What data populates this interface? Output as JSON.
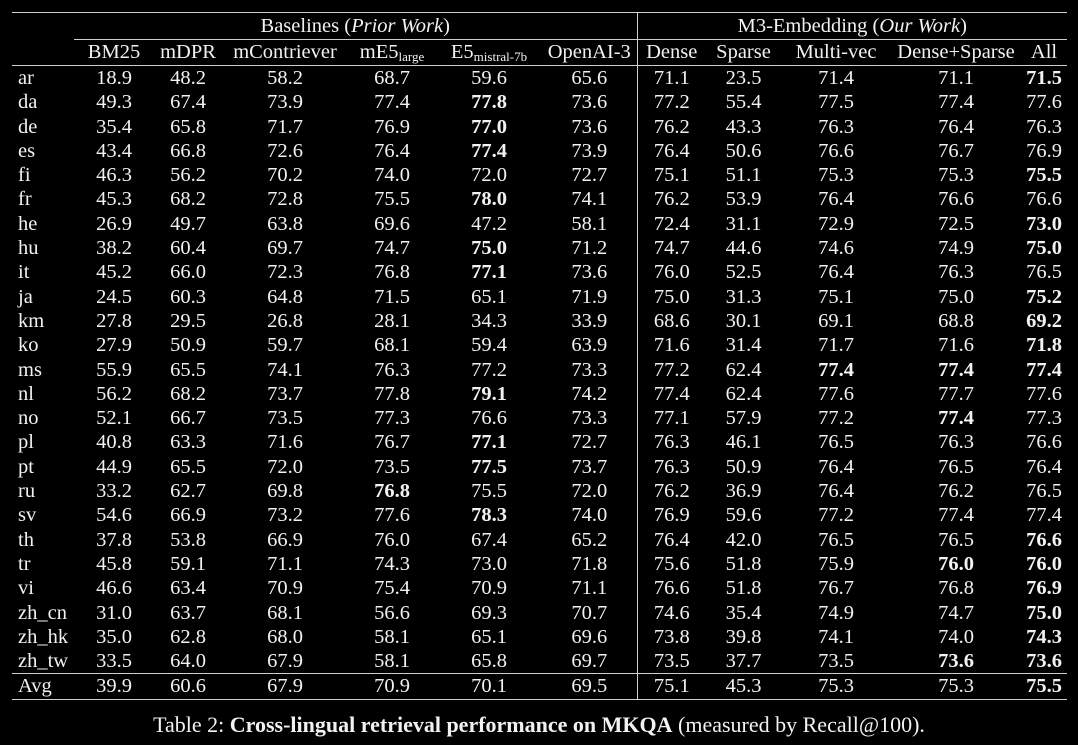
{
  "groups": {
    "baselines_prefix": "Baselines (",
    "baselines_italic": "Prior Work",
    "baselines_suffix": ")",
    "m3_prefix": "M3-Embedding (",
    "m3_italic": "Our Work",
    "m3_suffix": ")"
  },
  "headers": {
    "bm25": "BM25",
    "mdpr": "mDPR",
    "mcontriever": "mContriever",
    "me5_main": "mE5",
    "me5_sub": "large",
    "e5_main": "E5",
    "e5_sub": "mistral-7b",
    "openai": "OpenAI-3",
    "dense": "Dense",
    "sparse": "Sparse",
    "multivec": "Multi-vec",
    "densesparse": "Dense+Sparse",
    "all": "All"
  },
  "rows": [
    {
      "lang": "ar",
      "v": [
        "18.9",
        "48.2",
        "58.2",
        "68.7",
        "59.6",
        "65.6",
        "71.1",
        "23.5",
        "71.4",
        "71.1",
        "71.5"
      ],
      "bold": [
        10
      ]
    },
    {
      "lang": "da",
      "v": [
        "49.3",
        "67.4",
        "73.9",
        "77.4",
        "77.8",
        "73.6",
        "77.2",
        "55.4",
        "77.5",
        "77.4",
        "77.6"
      ],
      "bold": [
        4
      ]
    },
    {
      "lang": "de",
      "v": [
        "35.4",
        "65.8",
        "71.7",
        "76.9",
        "77.0",
        "73.6",
        "76.2",
        "43.3",
        "76.3",
        "76.4",
        "76.3"
      ],
      "bold": [
        4
      ]
    },
    {
      "lang": "es",
      "v": [
        "43.4",
        "66.8",
        "72.6",
        "76.4",
        "77.4",
        "73.9",
        "76.4",
        "50.6",
        "76.6",
        "76.7",
        "76.9"
      ],
      "bold": [
        4
      ]
    },
    {
      "lang": "fi",
      "v": [
        "46.3",
        "56.2",
        "70.2",
        "74.0",
        "72.0",
        "72.7",
        "75.1",
        "51.1",
        "75.3",
        "75.3",
        "75.5"
      ],
      "bold": [
        10
      ]
    },
    {
      "lang": "fr",
      "v": [
        "45.3",
        "68.2",
        "72.8",
        "75.5",
        "78.0",
        "74.1",
        "76.2",
        "53.9",
        "76.4",
        "76.6",
        "76.6"
      ],
      "bold": [
        4
      ]
    },
    {
      "lang": "he",
      "v": [
        "26.9",
        "49.7",
        "63.8",
        "69.6",
        "47.2",
        "58.1",
        "72.4",
        "31.1",
        "72.9",
        "72.5",
        "73.0"
      ],
      "bold": [
        10
      ]
    },
    {
      "lang": "hu",
      "v": [
        "38.2",
        "60.4",
        "69.7",
        "74.7",
        "75.0",
        "71.2",
        "74.7",
        "44.6",
        "74.6",
        "74.9",
        "75.0"
      ],
      "bold": [
        4,
        10
      ]
    },
    {
      "lang": "it",
      "v": [
        "45.2",
        "66.0",
        "72.3",
        "76.8",
        "77.1",
        "73.6",
        "76.0",
        "52.5",
        "76.4",
        "76.3",
        "76.5"
      ],
      "bold": [
        4
      ]
    },
    {
      "lang": "ja",
      "v": [
        "24.5",
        "60.3",
        "64.8",
        "71.5",
        "65.1",
        "71.9",
        "75.0",
        "31.3",
        "75.1",
        "75.0",
        "75.2"
      ],
      "bold": [
        10
      ]
    },
    {
      "lang": "km",
      "v": [
        "27.8",
        "29.5",
        "26.8",
        "28.1",
        "34.3",
        "33.9",
        "68.6",
        "30.1",
        "69.1",
        "68.8",
        "69.2"
      ],
      "bold": [
        10
      ]
    },
    {
      "lang": "ko",
      "v": [
        "27.9",
        "50.9",
        "59.7",
        "68.1",
        "59.4",
        "63.9",
        "71.6",
        "31.4",
        "71.7",
        "71.6",
        "71.8"
      ],
      "bold": [
        10
      ]
    },
    {
      "lang": "ms",
      "v": [
        "55.9",
        "65.5",
        "74.1",
        "76.3",
        "77.2",
        "73.3",
        "77.2",
        "62.4",
        "77.4",
        "77.4",
        "77.4"
      ],
      "bold": [
        8,
        9,
        10
      ]
    },
    {
      "lang": "nl",
      "v": [
        "56.2",
        "68.2",
        "73.7",
        "77.8",
        "79.1",
        "74.2",
        "77.4",
        "62.4",
        "77.6",
        "77.7",
        "77.6"
      ],
      "bold": [
        4
      ]
    },
    {
      "lang": "no",
      "v": [
        "52.1",
        "66.7",
        "73.5",
        "77.3",
        "76.6",
        "73.3",
        "77.1",
        "57.9",
        "77.2",
        "77.4",
        "77.3"
      ],
      "bold": [
        9
      ]
    },
    {
      "lang": "pl",
      "v": [
        "40.8",
        "63.3",
        "71.6",
        "76.7",
        "77.1",
        "72.7",
        "76.3",
        "46.1",
        "76.5",
        "76.3",
        "76.6"
      ],
      "bold": [
        4
      ]
    },
    {
      "lang": "pt",
      "v": [
        "44.9",
        "65.5",
        "72.0",
        "73.5",
        "77.5",
        "73.7",
        "76.3",
        "50.9",
        "76.4",
        "76.5",
        "76.4"
      ],
      "bold": [
        4
      ]
    },
    {
      "lang": "ru",
      "v": [
        "33.2",
        "62.7",
        "69.8",
        "76.8",
        "75.5",
        "72.0",
        "76.2",
        "36.9",
        "76.4",
        "76.2",
        "76.5"
      ],
      "bold": [
        3
      ]
    },
    {
      "lang": "sv",
      "v": [
        "54.6",
        "66.9",
        "73.2",
        "77.6",
        "78.3",
        "74.0",
        "76.9",
        "59.6",
        "77.2",
        "77.4",
        "77.4"
      ],
      "bold": [
        4
      ]
    },
    {
      "lang": "th",
      "v": [
        "37.8",
        "53.8",
        "66.9",
        "76.0",
        "67.4",
        "65.2",
        "76.4",
        "42.0",
        "76.5",
        "76.5",
        "76.6"
      ],
      "bold": [
        10
      ]
    },
    {
      "lang": "tr",
      "v": [
        "45.8",
        "59.1",
        "71.1",
        "74.3",
        "73.0",
        "71.8",
        "75.6",
        "51.8",
        "75.9",
        "76.0",
        "76.0"
      ],
      "bold": [
        9,
        10
      ]
    },
    {
      "lang": "vi",
      "v": [
        "46.6",
        "63.4",
        "70.9",
        "75.4",
        "70.9",
        "71.1",
        "76.6",
        "51.8",
        "76.7",
        "76.8",
        "76.9"
      ],
      "bold": [
        10
      ]
    },
    {
      "lang": "zh_cn",
      "v": [
        "31.0",
        "63.7",
        "68.1",
        "56.6",
        "69.3",
        "70.7",
        "74.6",
        "35.4",
        "74.9",
        "74.7",
        "75.0"
      ],
      "bold": [
        10
      ]
    },
    {
      "lang": "zh_hk",
      "v": [
        "35.0",
        "62.8",
        "68.0",
        "58.1",
        "65.1",
        "69.6",
        "73.8",
        "39.8",
        "74.1",
        "74.0",
        "74.3"
      ],
      "bold": [
        10
      ]
    },
    {
      "lang": "zh_tw",
      "v": [
        "33.5",
        "64.0",
        "67.9",
        "58.1",
        "65.8",
        "69.7",
        "73.5",
        "37.7",
        "73.5",
        "73.6",
        "73.6"
      ],
      "bold": [
        9,
        10
      ]
    }
  ],
  "avg": {
    "lang": "Avg",
    "v": [
      "39.9",
      "60.6",
      "67.9",
      "70.9",
      "70.1",
      "69.5",
      "75.1",
      "45.3",
      "75.3",
      "75.3",
      "75.5"
    ],
    "bold": [
      10
    ]
  },
  "caption": {
    "prefix": "Table 2: ",
    "bold": "Cross-lingual retrieval performance on MKQA",
    "suffix": " (measured by Recall@100)."
  }
}
